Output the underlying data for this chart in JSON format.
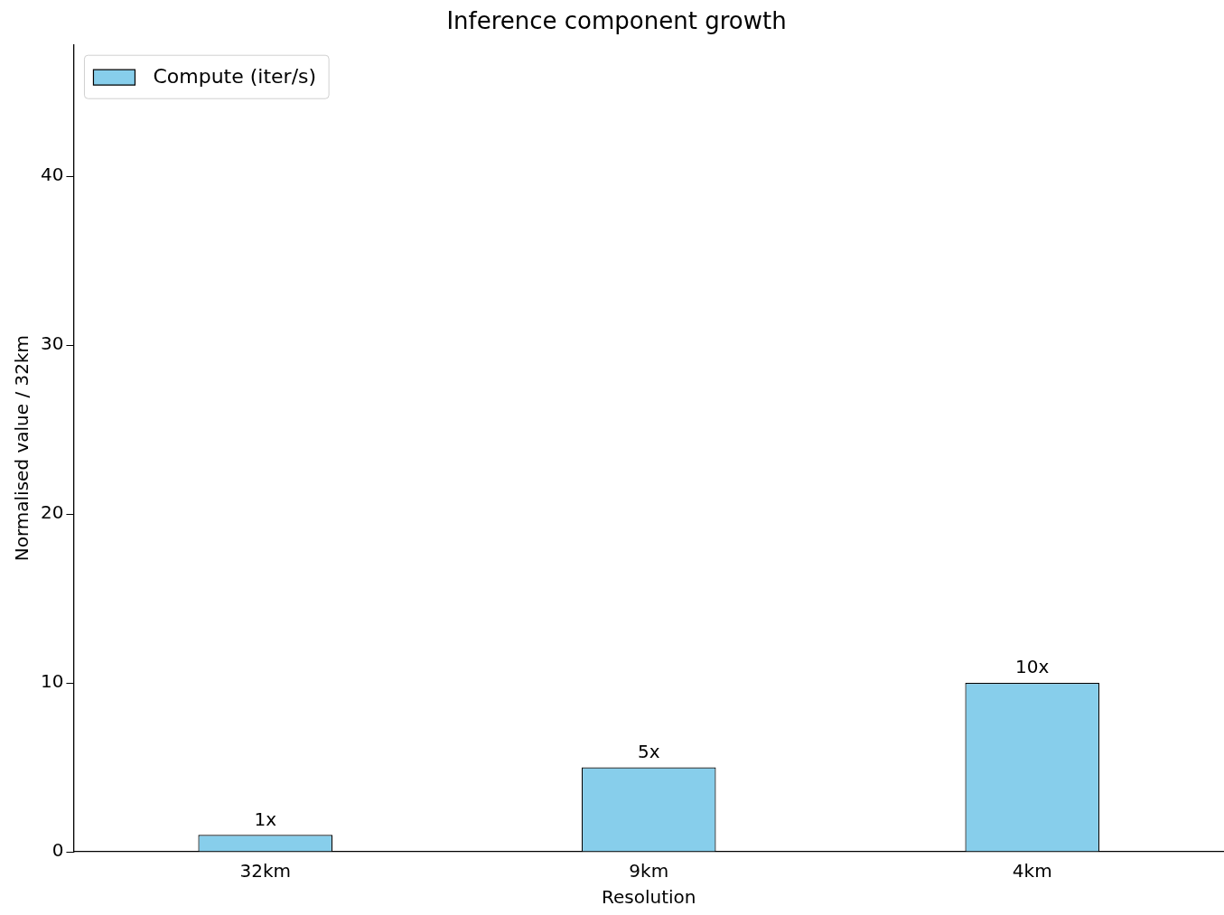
{
  "chart_data": {
    "type": "bar",
    "title": "Inference component growth",
    "xlabel": "Resolution",
    "ylabel": "Normalised value / 32km",
    "categories": [
      "32km",
      "9km",
      "4km"
    ],
    "series": [
      {
        "name": "Compute (iter/s)",
        "color": "#87ceeb",
        "values": [
          1,
          5,
          10
        ],
        "value_labels": [
          "1x",
          "5x",
          "10x"
        ]
      }
    ],
    "ylim": [
      0,
      47.8
    ],
    "yticks": [
      0,
      10,
      20,
      30,
      40
    ],
    "grid": false,
    "legend": "top left"
  }
}
